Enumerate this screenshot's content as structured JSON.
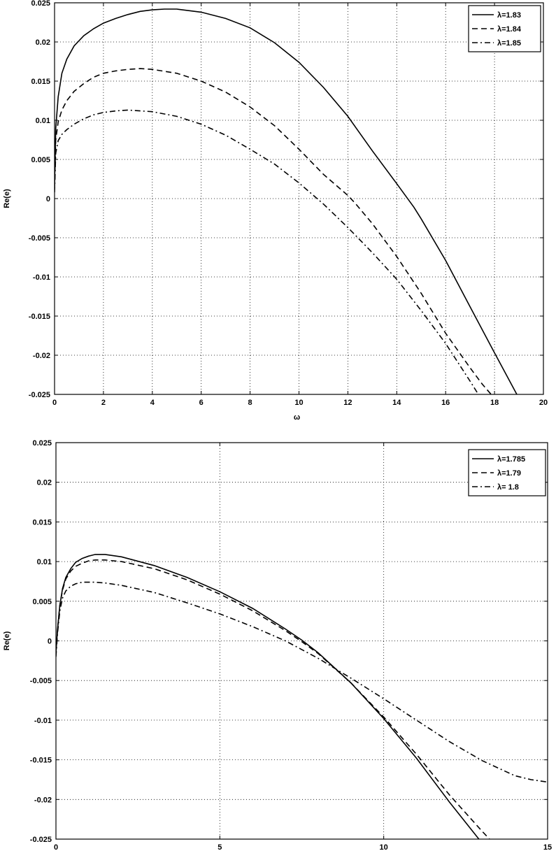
{
  "chart_data": [
    {
      "type": "line",
      "xlabel": "ω",
      "ylabel": "Re(e)",
      "xlim": [
        0,
        20
      ],
      "ylim": [
        -0.025,
        0.025
      ],
      "xticks": [
        "0",
        "2",
        "4",
        "6",
        "8",
        "10",
        "12",
        "14",
        "16",
        "18",
        "20"
      ],
      "yticks": [
        "0.025",
        "0.02",
        "0.015",
        "0.01",
        "0.005",
        "0",
        "-0.005",
        "-0.01",
        "-0.015",
        "-0.02",
        "-0.025"
      ],
      "grid": true,
      "legend_position": "top-right",
      "series": [
        {
          "name": "λ=1.83",
          "style": "solid",
          "x": [
            0,
            0.05,
            0.15,
            0.3,
            0.5,
            0.8,
            1.2,
            1.6,
            2,
            2.5,
            3,
            3.5,
            4,
            4.5,
            5,
            6,
            7,
            8,
            9,
            10,
            11,
            12,
            13,
            14,
            14.7,
            15,
            16,
            17,
            18,
            19,
            19.1
          ],
          "y": [
            0.0015,
            0.009,
            0.013,
            0.016,
            0.0178,
            0.0195,
            0.0208,
            0.0217,
            0.0224,
            0.023,
            0.0235,
            0.0239,
            0.0241,
            0.0242,
            0.0242,
            0.0238,
            0.023,
            0.0218,
            0.0199,
            0.0174,
            0.0142,
            0.0105,
            0.0061,
            0.0019,
            -0.0011,
            -0.0026,
            -0.0079,
            -0.0138,
            -0.0197,
            -0.0255,
            -0.0261
          ]
        },
        {
          "name": "λ=1.84",
          "style": "dashed",
          "x": [
            0,
            0.05,
            0.15,
            0.3,
            0.5,
            0.8,
            1.2,
            1.6,
            2,
            2.5,
            3,
            3.5,
            4,
            5,
            6,
            7,
            8,
            9,
            10,
            11,
            12,
            12.3,
            13,
            14,
            15,
            16,
            17,
            17.5,
            18
          ],
          "y": [
            0.0012,
            0.0075,
            0.0098,
            0.0113,
            0.0125,
            0.0137,
            0.0147,
            0.0155,
            0.016,
            0.0163,
            0.0165,
            0.0166,
            0.0165,
            0.016,
            0.015,
            0.0136,
            0.0117,
            0.0093,
            0.0063,
            0.0031,
            0.0004,
            -0.0006,
            -0.0032,
            -0.0074,
            -0.0121,
            -0.0172,
            -0.0216,
            -0.0237,
            -0.0255
          ]
        },
        {
          "name": "λ=1.85",
          "style": "dashdot",
          "x": [
            0,
            0.05,
            0.15,
            0.3,
            0.5,
            0.8,
            1.2,
            1.6,
            2,
            2.5,
            3,
            3.5,
            4,
            5,
            6,
            7,
            8,
            9,
            10,
            11,
            12,
            13,
            14,
            15,
            16,
            17,
            17.3
          ],
          "y": [
            0.0008,
            0.0058,
            0.0074,
            0.0082,
            0.0088,
            0.0095,
            0.0102,
            0.0107,
            0.011,
            0.0112,
            0.0113,
            0.0112,
            0.0111,
            0.0105,
            0.0095,
            0.0081,
            0.0063,
            0.0044,
            0.002,
            -0.0007,
            -0.0037,
            -0.0069,
            -0.0103,
            -0.0143,
            -0.0185,
            -0.0233,
            -0.0248
          ]
        }
      ]
    },
    {
      "type": "line",
      "xlabel": "",
      "ylabel": "Re(e)",
      "xlim": [
        0,
        15
      ],
      "ylim": [
        -0.025,
        0.025
      ],
      "xticks": [
        "0",
        "5",
        "10",
        "15"
      ],
      "yticks": [
        "0.025",
        "0.02",
        "0.015",
        "0.01",
        "0.005",
        "0",
        "-0.005",
        "-0.01",
        "-0.015",
        "-0.02",
        "-0.025"
      ],
      "grid": true,
      "legend_position": "top-right",
      "series": [
        {
          "name": "λ=1.785",
          "style": "solid",
          "x": [
            0,
            0.05,
            0.12,
            0.2,
            0.3,
            0.45,
            0.6,
            0.8,
            1,
            1.2,
            1.5,
            2,
            3,
            4,
            5,
            6,
            7,
            7.5,
            8,
            9,
            10,
            11,
            12,
            13
          ],
          "y": [
            -0.0015,
            0.0015,
            0.0045,
            0.0066,
            0.008,
            0.0091,
            0.0099,
            0.0104,
            0.0107,
            0.0109,
            0.0109,
            0.0106,
            0.0095,
            0.008,
            0.0062,
            0.0041,
            0.0015,
            0.0001,
            -0.0015,
            -0.0053,
            -0.0098,
            -0.0148,
            -0.0203,
            -0.0255
          ]
        },
        {
          "name": "λ=1.79",
          "style": "dashed",
          "x": [
            0,
            0.05,
            0.12,
            0.2,
            0.3,
            0.45,
            0.6,
            0.8,
            1,
            1.2,
            1.5,
            2,
            3,
            4,
            5,
            6,
            7,
            7.5,
            8,
            9,
            10,
            11,
            12,
            13,
            13.5
          ],
          "y": [
            -0.0015,
            0.0015,
            0.0045,
            0.0064,
            0.0078,
            0.0088,
            0.0094,
            0.0098,
            0.0101,
            0.0102,
            0.0102,
            0.01,
            0.0091,
            0.0077,
            0.0059,
            0.0038,
            0.0013,
            -0.0001,
            -0.0016,
            -0.0053,
            -0.0096,
            -0.0143,
            -0.0194,
            -0.024,
            -0.0262
          ]
        },
        {
          "name": "λ= 1.8",
          "style": "dashdot",
          "x": [
            0,
            0.05,
            0.12,
            0.2,
            0.3,
            0.45,
            0.6,
            0.8,
            1,
            1.2,
            1.5,
            2,
            3,
            4,
            5,
            6,
            7,
            8,
            9,
            10,
            11,
            12,
            13,
            14,
            14.5,
            15
          ],
          "y": [
            -0.002,
            0.001,
            0.0038,
            0.0054,
            0.0063,
            0.0069,
            0.0072,
            0.0074,
            0.0074,
            0.0074,
            0.0073,
            0.007,
            0.0061,
            0.0048,
            0.0034,
            0.0018,
            0.0,
            -0.0022,
            -0.0047,
            -0.0073,
            -0.01,
            -0.0127,
            -0.0151,
            -0.017,
            -0.0175,
            -0.0178
          ]
        }
      ]
    }
  ]
}
